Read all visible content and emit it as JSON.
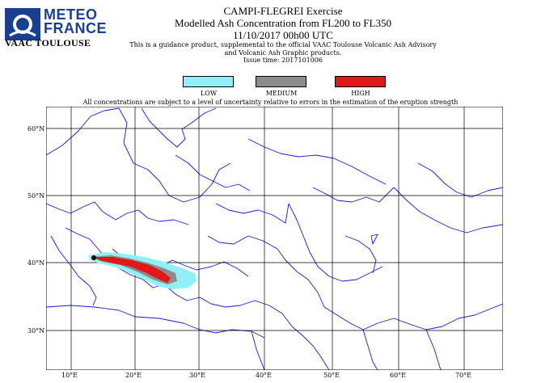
{
  "header": {
    "logo_line1": "METEO",
    "logo_line2": "FRANCE",
    "vaac": "VAAC TOULOUSE"
  },
  "title": {
    "line1": "CAMPI-FLEGREI Exercise",
    "line2": "Modelled Ash Concentration from FL200 to FL350",
    "line3": "11/10/2017 00h00 UTC",
    "disclaimer1": "This is a guidance product, supplemental to the official VAAC Toulouse Volcanic Ash Advisory",
    "disclaimer2": "and Volcanic Ash Graphic products.",
    "issue": "Issue time: 2017101006"
  },
  "legend": {
    "items": [
      {
        "label": "LOW",
        "color": "#8ff0f8"
      },
      {
        "label": "MEDIUM",
        "color": "#8c8c8c"
      },
      {
        "label": "HIGH",
        "color": "#e01818"
      }
    ],
    "note": "All concentrations are subject to a level of uncertainty relative to errors in the estimation of the eruption strength"
  },
  "map": {
    "lat_labels": [
      "60°N",
      "50°N",
      "40°N",
      "30°N"
    ],
    "lon_labels": [
      "10°E",
      "20°E",
      "30°E",
      "40°E",
      "50°E",
      "60°E",
      "70°E"
    ],
    "coast_color": "#1a1acc",
    "grid_color": "#000000"
  }
}
